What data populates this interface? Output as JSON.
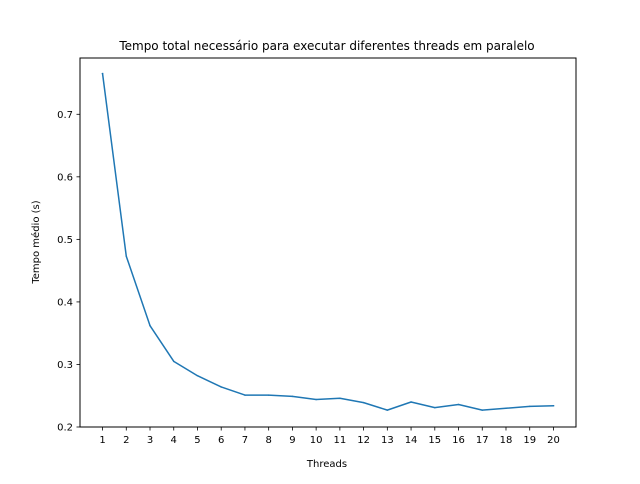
{
  "chart_data": {
    "type": "line",
    "title": "Tempo total necessário para executar diferentes threads em paralelo",
    "xlabel": "Threads",
    "ylabel": "Tempo médio (s)",
    "x": [
      1,
      2,
      3,
      4,
      5,
      6,
      7,
      8,
      9,
      10,
      11,
      12,
      13,
      14,
      15,
      16,
      17,
      18,
      19,
      20
    ],
    "x_tick_labels": [
      "1",
      "2",
      "3",
      "4",
      "5",
      "6",
      "7",
      "8",
      "9",
      "10",
      "11",
      "12",
      "13",
      "14",
      "15",
      "16",
      "17",
      "18",
      "19",
      "20"
    ],
    "y_ticks": [
      0.2,
      0.3,
      0.4,
      0.5,
      0.6,
      0.7
    ],
    "y_tick_labels": [
      "0.2",
      "0.3",
      "0.4",
      "0.5",
      "0.6",
      "0.7"
    ],
    "xlim": [
      0.05,
      20.95
    ],
    "ylim": [
      0.2,
      0.79
    ],
    "grid": false,
    "series": [
      {
        "values": [
          0.765,
          0.473,
          0.362,
          0.305,
          0.282,
          0.264,
          0.251,
          0.251,
          0.249,
          0.244,
          0.246,
          0.239,
          0.227,
          0.24,
          0.231,
          0.236,
          0.227,
          0.23,
          0.233,
          0.234
        ],
        "color": "#1f77b4"
      }
    ]
  }
}
